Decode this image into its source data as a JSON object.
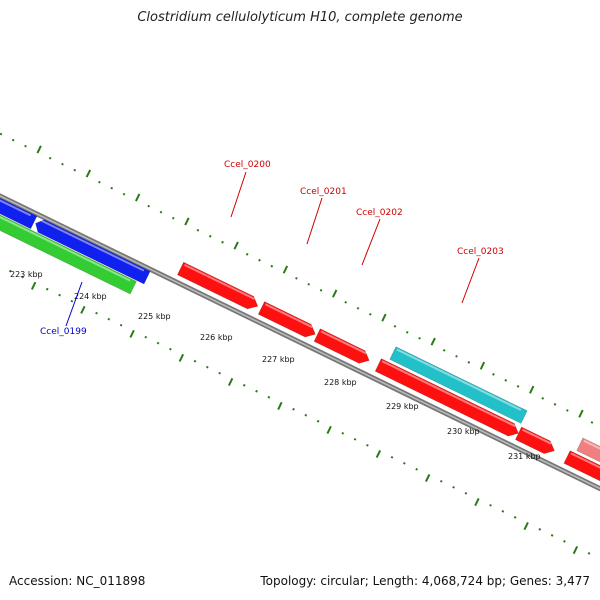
{
  "header": {
    "title": "Clostridium cellulolyticum H10, complete genome"
  },
  "footer": {
    "accession": "Accession: NC_011898",
    "summary": "Topology: circular; Length: 4,068,724 bp; Genes: 3,477"
  },
  "colors": {
    "background": "#ffffff",
    "backbone": "#777777",
    "tick": "#2a7a1a",
    "forward_cds": "#ff1010",
    "reverse_cds": "#1020ee",
    "rna": "#22c0c8",
    "other": "#33cc33",
    "faded_cds": "#f08080",
    "label_forward": "#cc0000",
    "label_reverse": "#0000cc"
  },
  "scale_labels": [
    "223 kbp",
    "224 kbp",
    "225 kbp",
    "226 kbp",
    "227 kbp",
    "228 kbp",
    "229 kbp",
    "230 kbp",
    "231 kbp"
  ],
  "gene_labels": [
    {
      "text": "Ccel_0200",
      "strand": "forward"
    },
    {
      "text": "Ccel_0201",
      "strand": "forward"
    },
    {
      "text": "Ccel_0202",
      "strand": "forward"
    },
    {
      "text": "Ccel_0203",
      "strand": "forward"
    },
    {
      "text": "Ccel_0199",
      "strand": "reverse"
    }
  ]
}
